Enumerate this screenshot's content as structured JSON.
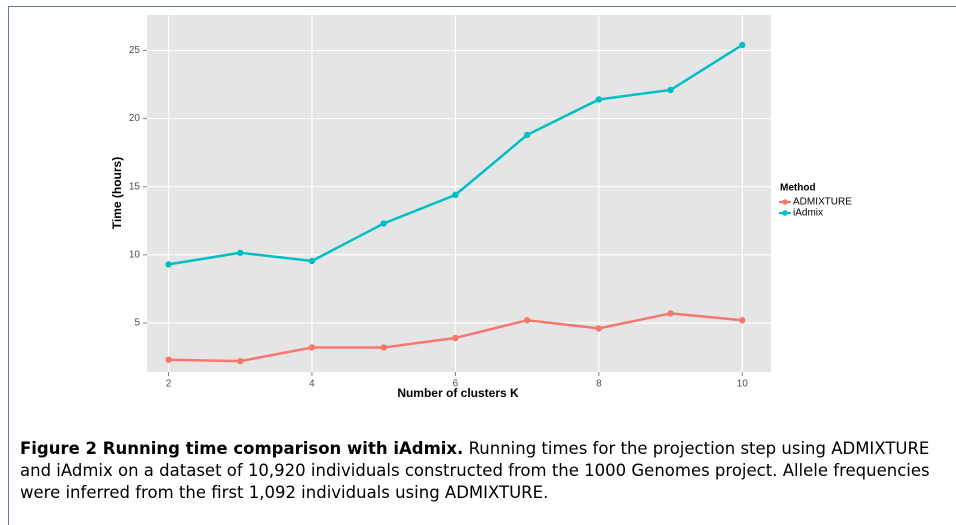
{
  "chart_data": {
    "type": "line",
    "x": [
      2,
      3,
      4,
      5,
      6,
      7,
      8,
      9,
      10
    ],
    "series": [
      {
        "name": "ADMIXTURE",
        "color": "#F8766D",
        "values": [
          2.3,
          2.2,
          3.2,
          3.2,
          3.9,
          5.2,
          4.6,
          5.7,
          5.2
        ]
      },
      {
        "name": "iAdmix",
        "color": "#00BFC4",
        "values": [
          9.3,
          10.15,
          9.55,
          12.3,
          14.4,
          18.8,
          21.4,
          22.1,
          25.4
        ]
      }
    ],
    "xlabel": "Number of clusters K",
    "ylabel": "Time (hours)",
    "legend_title": "Method",
    "xlim": [
      1.7,
      10.4
    ],
    "ylim": [
      1.4,
      27.6
    ],
    "xticks": [
      2,
      4,
      6,
      8,
      10
    ],
    "yticks": [
      5,
      10,
      15,
      20,
      25
    ],
    "grid": true,
    "legend": "right"
  },
  "caption": {
    "label": "Figure 2 Running time comparison with iAdmix.",
    "text": "Running times for the projection step using ADMIXTURE and iAdmix on a dataset of 10,920 individuals constructed from the 1000 Genomes project. Allele frequencies were inferred from the first 1,092 individuals using ADMIXTURE."
  }
}
